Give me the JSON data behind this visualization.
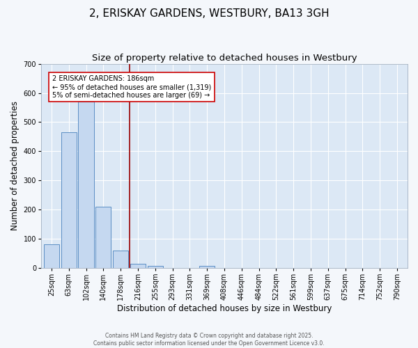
{
  "title": "2, ERISKAY GARDENS, WESTBURY, BA13 3GH",
  "subtitle": "Size of property relative to detached houses in Westbury",
  "xlabel": "Distribution of detached houses by size in Westbury",
  "ylabel": "Number of detached properties",
  "bar_labels": [
    "25sqm",
    "63sqm",
    "102sqm",
    "140sqm",
    "178sqm",
    "216sqm",
    "255sqm",
    "293sqm",
    "331sqm",
    "369sqm",
    "408sqm",
    "446sqm",
    "484sqm",
    "522sqm",
    "561sqm",
    "599sqm",
    "637sqm",
    "675sqm",
    "714sqm",
    "752sqm",
    "790sqm"
  ],
  "bar_values": [
    80,
    465,
    570,
    210,
    60,
    15,
    8,
    0,
    0,
    6,
    0,
    0,
    0,
    0,
    0,
    0,
    0,
    0,
    0,
    0,
    0
  ],
  "bar_color": "#c5d8f0",
  "bar_edge_color": "#5b8ec4",
  "background_color": "#dce8f5",
  "grid_color": "#ffffff",
  "red_line_x": 4.5,
  "annotation_text": "2 ERISKAY GARDENS: 186sqm\n← 95% of detached houses are smaller (1,319)\n5% of semi-detached houses are larger (69) →",
  "annotation_box_color": "#ffffff",
  "annotation_box_edge": "#cc0000",
  "ylim": [
    0,
    700
  ],
  "yticks": [
    0,
    100,
    200,
    300,
    400,
    500,
    600,
    700
  ],
  "footer": "Contains HM Land Registry data © Crown copyright and database right 2025.\nContains public sector information licensed under the Open Government Licence v3.0.",
  "title_fontsize": 11,
  "subtitle_fontsize": 9.5,
  "tick_fontsize": 7,
  "ylabel_fontsize": 8.5,
  "xlabel_fontsize": 8.5,
  "annotation_fontsize": 7,
  "footer_fontsize": 5.5
}
